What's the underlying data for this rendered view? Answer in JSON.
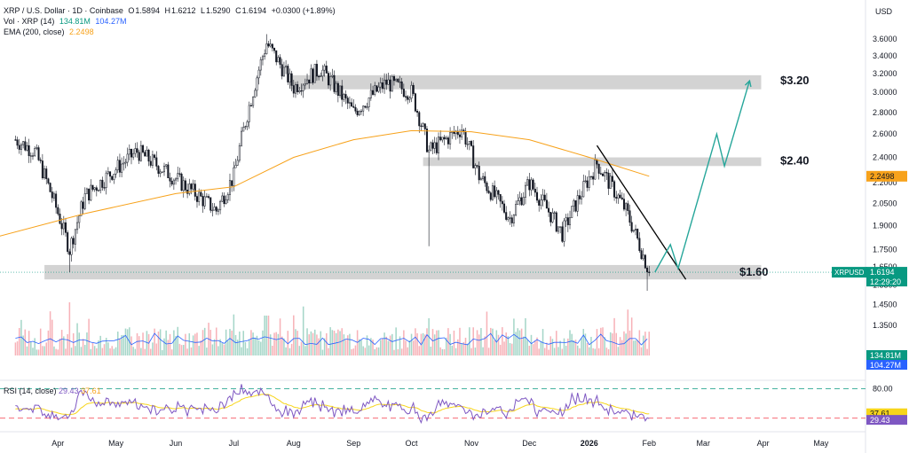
{
  "header": {
    "symbol": "XRP / U.S. Dollar · 1D · Coinbase",
    "o_label": "O",
    "o": "1.5894",
    "h_label": "H",
    "h": "1.6212",
    "l_label": "L",
    "l": "1.5290",
    "c_label": "C",
    "c": "1.6194",
    "change": "+0.0300 (+1.89%)",
    "vol_label": "Vol · XRP (14)",
    "vol_value": "134.81M",
    "vol_ma": "104.27M",
    "ema_label": "EMA (200, close)",
    "ema_value": "2.2498",
    "rsi_label": "RSI (14, close)",
    "rsi_value": "29.43",
    "rsi_ma": "37.61",
    "currency": "USD"
  },
  "colors": {
    "up": "#089981",
    "down": "#f23645",
    "ema": "#f7a21b",
    "vol_ma": "#2962ff",
    "rsi": "#7e57c2",
    "rsi_ma": "#f7d51b",
    "zone": "#c8c8c8",
    "projection": "#26a69a",
    "trendline": "#000000"
  },
  "price_axis": {
    "ticks": [
      "3.6000",
      "3.4000",
      "3.2000",
      "3.0000",
      "2.8000",
      "2.6000",
      "2.4000",
      "2.2000",
      "2.0500",
      "1.9000",
      "1.7500",
      "1.6500",
      "1.5500",
      "1.4500",
      "1.3500"
    ],
    "tick_values": [
      3.6,
      3.4,
      3.2,
      3.0,
      2.8,
      2.6,
      2.4,
      2.2,
      2.05,
      1.9,
      1.75,
      1.65,
      1.55,
      1.45,
      1.35
    ],
    "ema_tag": "2.2498",
    "symbol_tag": "XRPUSD",
    "price_tag": "1.6194",
    "countdown": "12:29:20",
    "vol_tag": "134.81M",
    "vol_ma_tag": "104.27M"
  },
  "rsi_axis": {
    "upper": "80.00",
    "rsi_ma_tag": "37.61",
    "rsi_tag": "29.43"
  },
  "time_axis": [
    "Apr",
    "May",
    "Jun",
    "Jul",
    "Aug",
    "Sep",
    "Oct",
    "Nov",
    "Dec",
    "2026",
    "Feb",
    "Mar",
    "Apr",
    "May"
  ],
  "annotations": {
    "zone_high": "$3.20",
    "zone_mid": "$2.40",
    "zone_low": "$1.60"
  },
  "chart_data": {
    "type": "candlestick",
    "y_scale": "log",
    "ylim": [
      1.3,
      3.8
    ],
    "zones": [
      {
        "label": "$3.20",
        "low": 3.03,
        "high": 3.18
      },
      {
        "label": "$2.40",
        "low": 2.33,
        "high": 2.4
      },
      {
        "label": "$1.60",
        "low": 1.58,
        "high": 1.66
      }
    ],
    "price_path": [
      {
        "date": "2025-03-10",
        "close": 2.55
      },
      {
        "date": "2025-03-20",
        "close": 2.45
      },
      {
        "date": "2025-04-07",
        "close": 1.75
      },
      {
        "date": "2025-04-15",
        "close": 2.1
      },
      {
        "date": "2025-05-12",
        "close": 2.45
      },
      {
        "date": "2025-06-22",
        "close": 2.0
      },
      {
        "date": "2025-07-01",
        "close": 2.25
      },
      {
        "date": "2025-07-18",
        "close": 3.55
      },
      {
        "date": "2025-08-01",
        "close": 3.05
      },
      {
        "date": "2025-08-15",
        "close": 3.25
      },
      {
        "date": "2025-09-01",
        "close": 2.8
      },
      {
        "date": "2025-09-18",
        "close": 3.1
      },
      {
        "date": "2025-10-01",
        "close": 3.0
      },
      {
        "date": "2025-10-10",
        "close": 2.45
      },
      {
        "date": "2025-10-27",
        "close": 2.65
      },
      {
        "date": "2025-11-05",
        "close": 2.25
      },
      {
        "date": "2025-11-21",
        "close": 1.95
      },
      {
        "date": "2025-12-01",
        "close": 2.2
      },
      {
        "date": "2025-12-18",
        "close": 1.85
      },
      {
        "date": "2026-01-05",
        "close": 2.35
      },
      {
        "date": "2026-01-20",
        "close": 2.0
      },
      {
        "date": "2026-02-01",
        "close": 1.6194
      }
    ],
    "ema200": [
      {
        "date": "2025-03-01",
        "value": 1.83
      },
      {
        "date": "2025-04-15",
        "value": 1.98
      },
      {
        "date": "2025-06-01",
        "value": 2.12
      },
      {
        "date": "2025-07-01",
        "value": 2.17
      },
      {
        "date": "2025-08-01",
        "value": 2.4
      },
      {
        "date": "2025-09-01",
        "value": 2.55
      },
      {
        "date": "2025-10-01",
        "value": 2.63
      },
      {
        "date": "2025-11-01",
        "value": 2.62
      },
      {
        "date": "2025-12-01",
        "value": 2.55
      },
      {
        "date": "2026-01-01",
        "value": 2.4
      },
      {
        "date": "2026-02-01",
        "value": 2.2498
      }
    ],
    "projection": [
      {
        "date": "2026-02-04",
        "value": 1.62
      },
      {
        "date": "2026-02-12",
        "value": 1.78
      },
      {
        "date": "2026-02-16",
        "value": 1.64
      },
      {
        "date": "2026-03-08",
        "value": 2.6
      },
      {
        "date": "2026-03-12",
        "value": 2.33
      },
      {
        "date": "2026-03-25",
        "value": 3.12
      }
    ],
    "trendline": [
      {
        "date": "2026-01-05",
        "value": 2.5
      },
      {
        "date": "2026-02-20",
        "value": 1.58
      }
    ],
    "volume": {
      "last": 134.81,
      "ma14": 104.27,
      "unit": "M"
    },
    "rsi": {
      "period": 14,
      "last": 29.43,
      "ma": 37.61,
      "upper": 80,
      "lower": 30
    }
  }
}
